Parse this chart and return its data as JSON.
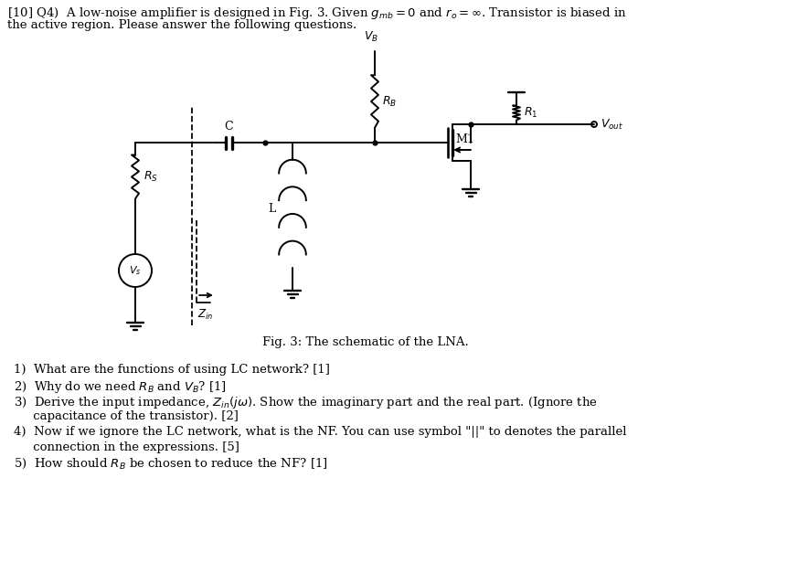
{
  "bg_color": "#ffffff",
  "line_color": "#000000",
  "title_line1": "[10] Q4)  A low-noise amplifier is designed in Fig. 3. Given $g_{mb}=0$ and $r_o=\\infty$. Transistor is biased in",
  "title_line2": "the active region. Please answer the following questions.",
  "fig_caption": "Fig. 3: The schematic of the LNA.",
  "q1": "1)  What are the functions of using LC network? [1]",
  "q2": "2)  Why do we need $R_B$ and $V_B$? [1]",
  "q3a": "3)  Derive the input impedance, $Z_{in}(j\\omega)$. Show the imaginary part and the real part. (Ignore the",
  "q3b": "     capacitance of the transistor). [2]",
  "q4a": "4)  Now if we ignore the LC network, what is the NF. You can use symbol \"||\" to denotes the parallel",
  "q4b": "     connection in the expressions. [5]",
  "q5": "5)  How should $R_B$ be chosen to reduce the NF? [1]"
}
